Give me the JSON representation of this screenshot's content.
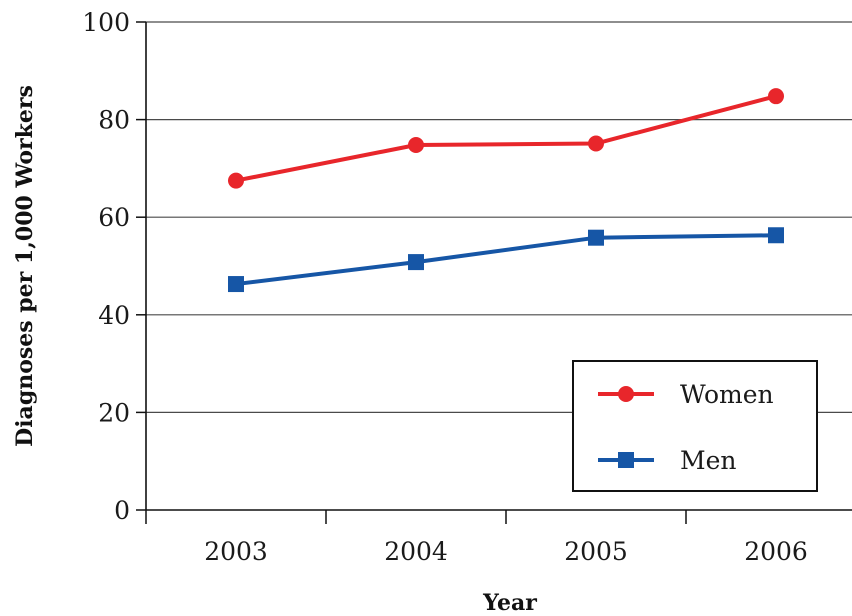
{
  "chart_data": {
    "type": "line",
    "title": "",
    "xlabel": "Year",
    "ylabel": "Diagnoses per 1,000 Workers",
    "x": [
      "2003",
      "2004",
      "2005",
      "2006"
    ],
    "ylim": [
      0,
      100
    ],
    "yticks": [
      "0",
      "20",
      "40",
      "60",
      "80",
      "100"
    ],
    "grid": "horizontal",
    "legend_position": "bottom-right",
    "series": [
      {
        "name": "Women",
        "values": [
          67.5,
          74.8,
          75.1,
          84.8
        ],
        "color": "#e8262b",
        "marker": "circle"
      },
      {
        "name": "Men",
        "values": [
          46.3,
          50.8,
          55.8,
          56.3
        ],
        "color": "#1656a6",
        "marker": "square"
      }
    ]
  }
}
